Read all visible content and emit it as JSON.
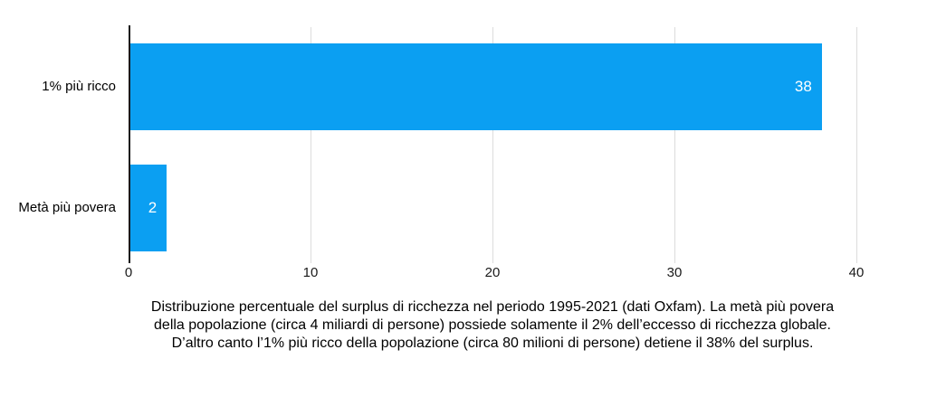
{
  "chart_data": {
    "type": "bar",
    "orientation": "horizontal",
    "categories": [
      "1% più ricco",
      "Metà più povera"
    ],
    "values": [
      38,
      2
    ],
    "value_labels": [
      "38",
      "2"
    ],
    "xlim": [
      0,
      40
    ],
    "x_ticks": [
      0,
      10,
      20,
      30,
      40
    ],
    "grid": "vertical-light",
    "legend": "none",
    "bar_color": "#0b9ff2",
    "value_label_color": "#ffffff",
    "axis_line_color": "#1a1a1a",
    "title": "",
    "xlabel": "",
    "ylabel": ""
  },
  "caption": {
    "lines": [
      "Distribuzione percentuale del surplus di ricchezza nel periodo 1995-2021 (dati Oxfam). La metà più povera",
      "della popolazione (circa 4 miliardi di persone) possiede solamente il 2% dell’eccesso di ricchezza globale.",
      "D’altro canto l’1% più ricco della popolazione (circa 80 milioni di persone) detiene il 38% del surplus."
    ]
  }
}
